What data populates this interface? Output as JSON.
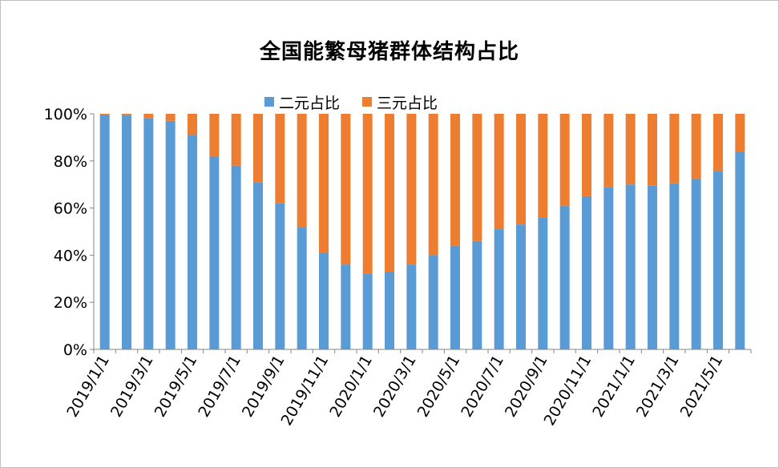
{
  "colors": {
    "series_1": "#5b9bd5",
    "series_2": "#ed7d31",
    "axis": "#868686"
  },
  "chart_data": {
    "type": "bar",
    "stacked": true,
    "title": "全国能繁母猪群体结构占比",
    "xlabel": "",
    "ylabel": "",
    "ylim": [
      0,
      100
    ],
    "yticks": [
      "0%",
      "20%",
      "40%",
      "60%",
      "80%",
      "100%"
    ],
    "legend_position": "top",
    "grid": false,
    "categories": [
      "2019/1/1",
      "2019/2/1",
      "2019/3/1",
      "2019/4/1",
      "2019/5/1",
      "2019/6/1",
      "2019/7/1",
      "2019/8/1",
      "2019/9/1",
      "2019/10/1",
      "2019/11/1",
      "2019/12/1",
      "2020/1/1",
      "2020/2/1",
      "2020/3/1",
      "2020/4/1",
      "2020/5/1",
      "2020/6/1",
      "2020/7/1",
      "2020/8/1",
      "2020/9/1",
      "2020/10/1",
      "2020/11/1",
      "2020/12/1",
      "2021/1/1",
      "2021/2/1",
      "2021/3/1",
      "2021/4/1",
      "2021/5/1",
      "2021/6/1"
    ],
    "xtick_labels": [
      "2019/1/1",
      "2019/3/1",
      "2019/5/1",
      "2019/7/1",
      "2019/9/1",
      "2019/11/1",
      "2020/1/1",
      "2020/3/1",
      "2020/5/1",
      "2020/7/1",
      "2020/9/1",
      "2020/11/1",
      "2021/1/1",
      "2021/3/1",
      "2021/5/1"
    ],
    "series": [
      {
        "name": "二元占比",
        "values": [
          99.5,
          99.3,
          98,
          97,
          91,
          82,
          78,
          71,
          62,
          52,
          41,
          36,
          32,
          33,
          36,
          40,
          44,
          46,
          51,
          53,
          56,
          61,
          65,
          69,
          70,
          69.5,
          70.5,
          72.5,
          75.5,
          84
        ]
      },
      {
        "name": "三元占比",
        "values": [
          0.5,
          0.7,
          2,
          3,
          9,
          18,
          22,
          29,
          38,
          48,
          59,
          64,
          68,
          67,
          64,
          60,
          56,
          54,
          49,
          47,
          44,
          39,
          35,
          31,
          30,
          30.5,
          29.5,
          27.5,
          24.5,
          16
        ]
      }
    ]
  }
}
